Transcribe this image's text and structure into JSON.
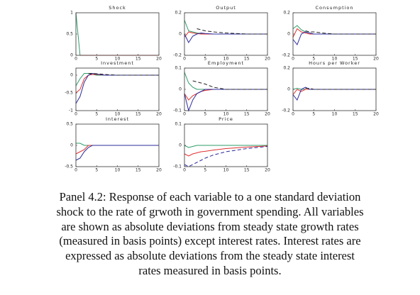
{
  "chart_data": [
    {
      "type": "line",
      "title": "Shock",
      "x": [
        0,
        1,
        2,
        3,
        4,
        5,
        7,
        10,
        15,
        20
      ],
      "xlim": [
        0,
        20
      ],
      "xticks": [
        0,
        5,
        10,
        15,
        20
      ],
      "ylim": [
        0,
        1
      ],
      "yticks": [
        0,
        0.5,
        1
      ],
      "series": [
        {
          "color": "#2e9c6a",
          "values": [
            1,
            0,
            null,
            null,
            null,
            null,
            null,
            null,
            null,
            null
          ]
        },
        {
          "color": "#e03030",
          "values": [
            null,
            0,
            0,
            0,
            0,
            0,
            0,
            0,
            0,
            0
          ]
        }
      ]
    },
    {
      "type": "line",
      "title": "Output",
      "x": [
        0,
        1,
        2,
        3,
        4,
        5,
        7,
        10,
        15,
        20
      ],
      "xlim": [
        0,
        20
      ],
      "xticks": [
        0,
        5,
        10,
        15,
        20
      ],
      "ylim": [
        -0.2,
        0.2
      ],
      "yticks": [
        -0.2,
        0,
        0.2
      ],
      "series": [
        {
          "color": "#2e9c6a",
          "values": [
            0.13,
            0.03,
            0.02,
            0.01,
            0.005,
            0,
            0,
            0,
            0,
            0
          ]
        },
        {
          "color": "#e03030",
          "values": [
            -0.03,
            0.02,
            0.01,
            0.005,
            0,
            0,
            0,
            0,
            0,
            0
          ]
        },
        {
          "color": "#2b2b9c",
          "values": [
            0,
            -0.08,
            -0.02,
            0,
            0.01,
            0.005,
            0,
            0,
            0,
            0
          ]
        },
        {
          "color": "#222222",
          "dash": true,
          "values": [
            null,
            null,
            null,
            0.05,
            0.04,
            0.03,
            0.02,
            0.01,
            0,
            0
          ]
        }
      ]
    },
    {
      "type": "line",
      "title": "Consumption",
      "x": [
        0,
        1,
        2,
        3,
        4,
        5,
        7,
        10,
        15,
        20
      ],
      "xlim": [
        0,
        20
      ],
      "xticks": [
        0,
        5,
        10,
        15,
        20
      ],
      "ylim": [
        -0.2,
        0.2
      ],
      "yticks": [
        -0.2,
        0,
        0.2
      ],
      "series": [
        {
          "color": "#2e9c6a",
          "values": [
            0.05,
            0.08,
            0.04,
            0.02,
            0.01,
            0,
            0,
            0,
            0,
            0
          ]
        },
        {
          "color": "#e03030",
          "values": [
            -0.03,
            0.05,
            0.02,
            0.01,
            0,
            0,
            0,
            0,
            0,
            0
          ]
        },
        {
          "color": "#2b2b9c",
          "values": [
            -0.05,
            -0.1,
            0,
            0.02,
            0.01,
            0,
            0,
            0,
            0,
            0
          ]
        },
        {
          "color": "#222222",
          "dash": true,
          "values": [
            null,
            null,
            null,
            0.03,
            0.02,
            0.02,
            0.01,
            0,
            0,
            0
          ]
        }
      ]
    },
    {
      "type": "line",
      "title": "Investment",
      "x": [
        0,
        1,
        2,
        3,
        4,
        5,
        7,
        10,
        15,
        20
      ],
      "xlim": [
        0,
        20
      ],
      "xticks": [
        0,
        5,
        10,
        15,
        20
      ],
      "ylim": [
        -1,
        0.2
      ],
      "yticks": [
        -1,
        -0.5,
        0
      ],
      "series": [
        {
          "color": "#2e9c6a",
          "values": [
            -0.3,
            -0.1,
            0.05,
            0.05,
            0.02,
            0,
            0,
            0,
            0,
            0
          ]
        },
        {
          "color": "#e03030",
          "values": [
            -0.5,
            -0.4,
            -0.1,
            0,
            0.02,
            0.02,
            0,
            0,
            0,
            0
          ]
        },
        {
          "color": "#2b2b9c",
          "values": [
            -0.8,
            -0.6,
            -0.2,
            0,
            0.05,
            0.03,
            0,
            0,
            0,
            0
          ]
        },
        {
          "color": "#222222",
          "dash": true,
          "values": [
            null,
            null,
            null,
            0.05,
            0.05,
            0.04,
            0.02,
            0,
            0,
            0
          ]
        }
      ]
    },
    {
      "type": "line",
      "title": "Employment",
      "x": [
        0,
        1,
        2,
        3,
        4,
        5,
        7,
        10,
        15,
        20
      ],
      "xlim": [
        0,
        20
      ],
      "xticks": [
        0,
        5,
        10,
        15,
        20
      ],
      "ylim": [
        -0.1,
        0.1
      ],
      "yticks": [
        -0.1,
        0,
        0.1
      ],
      "series": [
        {
          "color": "#2e9c6a",
          "values": [
            0.08,
            0.03,
            0.01,
            0,
            0,
            0,
            0,
            0,
            0,
            0
          ]
        },
        {
          "color": "#e03030",
          "values": [
            -0.02,
            -0.05,
            -0.03,
            -0.02,
            -0.01,
            -0.005,
            0,
            0,
            0,
            0
          ]
        },
        {
          "color": "#2b2b9c",
          "values": [
            -0.02,
            -0.1,
            -0.05,
            -0.02,
            -0.01,
            0,
            0,
            0,
            0,
            0
          ]
        },
        {
          "color": "#222222",
          "dash": true,
          "values": [
            null,
            null,
            0.04,
            0.035,
            0.03,
            0.025,
            0.01,
            0,
            0,
            0
          ]
        }
      ]
    },
    {
      "type": "line",
      "title": "Hours per Worker",
      "x": [
        0,
        1,
        2,
        3,
        4,
        5,
        7,
        10,
        15,
        20
      ],
      "xlim": [
        0,
        20
      ],
      "xticks": [
        0,
        5,
        10,
        15,
        20
      ],
      "ylim": [
        -0.2,
        0.2
      ],
      "yticks": [
        -0.2,
        0,
        0.2
      ],
      "series": [
        {
          "color": "#2e9c6a",
          "values": [
            0,
            0.01,
            0,
            0,
            0,
            0,
            0,
            0,
            0,
            0
          ]
        },
        {
          "color": "#e03030",
          "values": [
            -0.05,
            0,
            -0.02,
            0,
            0,
            0,
            0,
            0,
            0,
            0
          ]
        },
        {
          "color": "#2b2b9c",
          "values": [
            -0.05,
            -0.1,
            0,
            0.02,
            0,
            0,
            0,
            0,
            0,
            0
          ]
        },
        {
          "color": "#222222",
          "dash": true,
          "values": [
            null,
            null,
            null,
            0.01,
            0.01,
            0,
            0,
            0,
            0,
            0
          ]
        }
      ]
    },
    {
      "type": "line",
      "title": "Interest",
      "x": [
        0,
        1,
        2,
        3,
        4,
        5,
        7,
        10,
        15,
        20
      ],
      "xlim": [
        0,
        20
      ],
      "xticks": [
        0,
        5,
        10,
        15,
        20
      ],
      "ylim": [
        -0.5,
        0.5
      ],
      "yticks": [
        -0.5,
        0,
        0.5
      ],
      "series": [
        {
          "color": "#2e9c6a",
          "values": [
            0.05,
            0.05,
            0,
            0,
            0,
            0,
            0,
            0,
            0,
            0
          ]
        },
        {
          "color": "#e03030",
          "values": [
            -0.2,
            -0.15,
            -0.1,
            0,
            0,
            0,
            0,
            0,
            0,
            0
          ]
        },
        {
          "color": "#2b2b9c",
          "values": [
            -0.35,
            -0.3,
            -0.15,
            -0.05,
            0,
            0,
            0,
            0,
            0,
            0
          ]
        }
      ]
    },
    {
      "type": "line",
      "title": "Price",
      "x": [
        0,
        1,
        2,
        3,
        4,
        5,
        7,
        10,
        15,
        20
      ],
      "xlim": [
        0,
        20
      ],
      "xticks": [
        0,
        5,
        10,
        15,
        20
      ],
      "ylim": [
        -0.1,
        0.1
      ],
      "yticks": [
        -0.1,
        0,
        0.1
      ],
      "series": [
        {
          "color": "#2e9c6a",
          "values": [
            0,
            -0.01,
            -0.005,
            0,
            0,
            0,
            0,
            0,
            0,
            0
          ]
        },
        {
          "color": "#e03030",
          "values": [
            -0.04,
            -0.05,
            -0.04,
            -0.035,
            -0.03,
            -0.028,
            -0.022,
            -0.015,
            -0.008,
            -0.003
          ]
        },
        {
          "color": "#2b2b9c",
          "dash": true,
          "values": [
            -0.09,
            -0.1,
            -0.09,
            -0.08,
            -0.07,
            -0.06,
            -0.045,
            -0.03,
            -0.015,
            -0.005
          ]
        }
      ]
    }
  ],
  "caption_lines": [
    "Panel 4.2: Response of each variable to a one standard deviation",
    "shock to the rate of grwoth in government spending. All variables",
    "are shown as absolute deviations from steady state growth rates",
    "(measured in basis points) except interest rates. Interest rates are",
    "expressed as absolute deviations from the steady state interest",
    "rates measured in basis points."
  ]
}
